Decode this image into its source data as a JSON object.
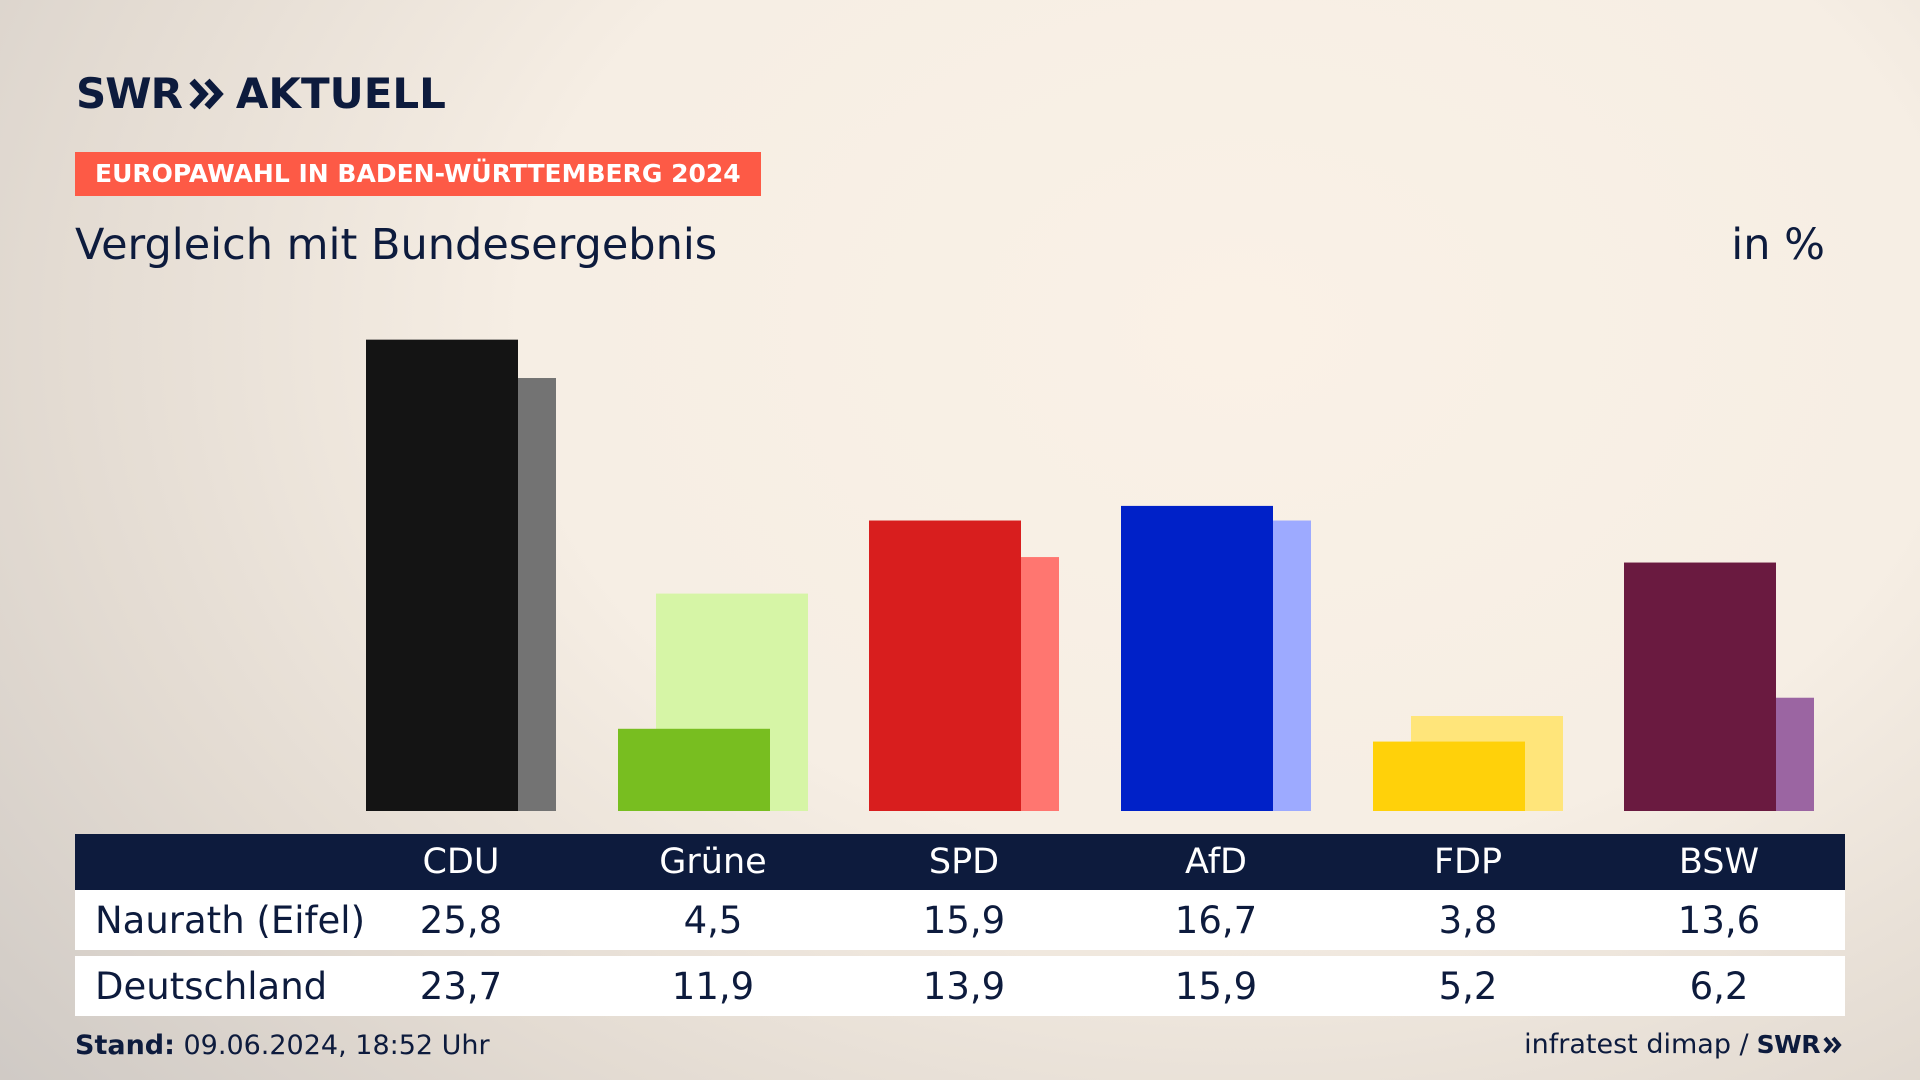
{
  "brand": {
    "swr": "SWR",
    "aktuell": "AKTUELL",
    "arrows_icon": "double-chevron-icon"
  },
  "tag": "EUROPAWAHL IN BADEN-WÜRTTEMBERG 2024",
  "subtitle": "Vergleich mit Bundesergebnis",
  "unit": "in %",
  "footer": {
    "stand_label": "Stand:",
    "stand_value": " 09.06.2024, 18:52 Uhr",
    "source": "infratest dimap /",
    "source_brand": "SWR"
  },
  "colors": {
    "navy": "#0d1b3d",
    "tag": "#fd5a46"
  },
  "chart_data": {
    "type": "bar",
    "unit": "in %",
    "categories": [
      "CDU",
      "Grüne",
      "SPD",
      "AfD",
      "FDP",
      "BSW"
    ],
    "series": [
      {
        "name": "Naurath (Eifel)",
        "values": [
          25.8,
          4.5,
          15.9,
          16.7,
          3.8,
          13.6
        ],
        "labels": [
          "25,8",
          "4,5",
          "15,9",
          "16,7",
          "3,8",
          "13,6"
        ],
        "colors": [
          "#141414",
          "#78be20",
          "#d81e1e",
          "#0021c8",
          "#ffd10a",
          "#6a1a40"
        ]
      },
      {
        "name": "Deutschland",
        "values": [
          23.7,
          11.9,
          13.9,
          15.9,
          5.2,
          6.2
        ],
        "labels": [
          "23,7",
          "11,9",
          "13,9",
          "15,9",
          "5,2",
          "6,2"
        ],
        "colors": [
          "#737373",
          "#d6f5a6",
          "#ff7670",
          "#9daaff",
          "#ffe57a",
          "#9b65a2"
        ]
      }
    ],
    "ylim": [
      0,
      26
    ],
    "grid": false,
    "legend": "table-below"
  }
}
